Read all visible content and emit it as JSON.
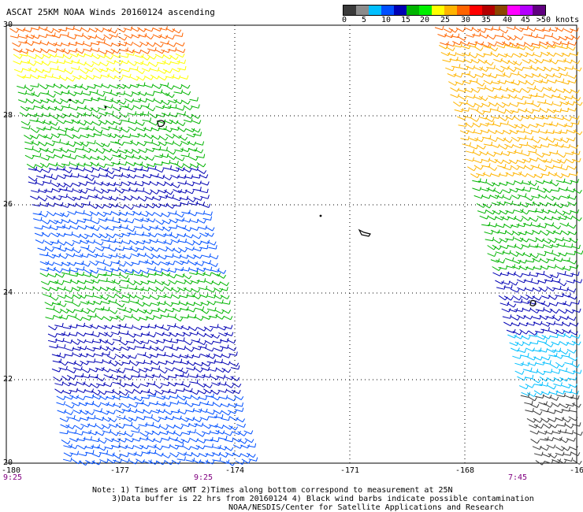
{
  "title": "ASCAT 25KM NOAA Winds 20160124 ascending",
  "legend": {
    "colors": [
      "#3a3a3a",
      "#8c8c8c",
      "#00bfff",
      "#0050ff",
      "#0000b4",
      "#00b400",
      "#00f000",
      "#ffff00",
      "#ffb400",
      "#ff6400",
      "#ff0000",
      "#b40000",
      "#8c4600",
      "#ff00ff",
      "#b400ff",
      "#600080"
    ],
    "labels": [
      "0",
      "5",
      "10",
      "15",
      "20",
      "25",
      "30",
      "35",
      "40",
      "45",
      ">50 knots"
    ]
  },
  "axes": {
    "lat_labels": [
      "30",
      "28",
      "26",
      "24",
      "22",
      "20"
    ],
    "lon_labels": [
      "-180",
      "-177",
      "-174",
      "-171",
      "-168",
      "-16"
    ]
  },
  "time_labels": [
    "9:25",
    "9:25",
    "7:45"
  ],
  "notes": [
    "Note: 1) Times are GMT 2)Times along bottom correspond to measurement at 25N",
    "3)Data buffer is 22 hrs from 20160124 4) Black wind barbs indicate possible contamination",
    "NOAA/NESDIS/Center for Satellite Applications and Research"
  ],
  "map_data": {
    "lat_range": [
      20,
      30
    ],
    "lon_range": [
      -180,
      -165
    ],
    "swaths": [
      {
        "name": "west swath",
        "bands": [
          {
            "from": 30,
            "to": 29.4,
            "color": "#ff6400"
          },
          {
            "from": 29.4,
            "to": 28.7,
            "color": "#ffff00"
          },
          {
            "from": 28.7,
            "to": 26.8,
            "color": "#00b400"
          },
          {
            "from": 26.8,
            "to": 25.8,
            "color": "#0000b4"
          },
          {
            "from": 25.8,
            "to": 24.4,
            "color": "#0050ff"
          },
          {
            "from": 24.4,
            "to": 23.2,
            "color": "#00b400"
          },
          {
            "from": 23.2,
            "to": 21.6,
            "color": "#0000b4"
          },
          {
            "from": 21.6,
            "to": 20.0,
            "color": "#0050ff"
          }
        ]
      },
      {
        "name": "east swath",
        "bands": [
          {
            "from": 30,
            "to": 29.6,
            "color": "#ff6400"
          },
          {
            "from": 29.6,
            "to": 26.5,
            "color": "#ffb400"
          },
          {
            "from": 26.5,
            "to": 24.4,
            "color": "#00b400"
          },
          {
            "from": 24.4,
            "to": 23.0,
            "color": "#0000b4"
          },
          {
            "from": 23.0,
            "to": 21.6,
            "color": "#00bfff"
          },
          {
            "from": 21.6,
            "to": 20.0,
            "color": "#3a3a3a"
          }
        ]
      }
    ]
  }
}
